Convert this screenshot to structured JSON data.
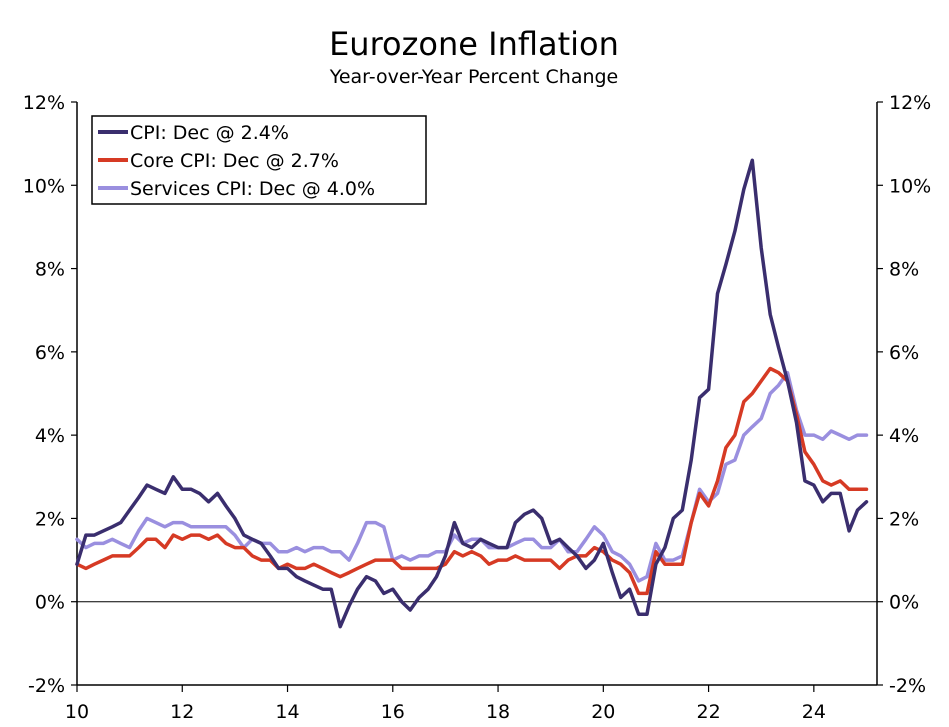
{
  "chart_data": {
    "type": "line",
    "title": "Eurozone Inflation",
    "subtitle": "Year-over-Year Percent Change",
    "xlabel": "",
    "ylabel": "",
    "x_ticks": [
      2010,
      2012,
      2014,
      2016,
      2018,
      2020,
      2022,
      2024
    ],
    "x_tick_labels": [
      "10",
      "12",
      "14",
      "16",
      "18",
      "20",
      "22",
      "24"
    ],
    "xlim": [
      2010,
      2025.2
    ],
    "ylim": [
      -2,
      12
    ],
    "y_ticks": [
      -2,
      0,
      2,
      4,
      6,
      8,
      10,
      12
    ],
    "y_tick_labels": [
      "-2%",
      "0%",
      "2%",
      "4%",
      "6%",
      "8%",
      "10%",
      "12%"
    ],
    "grid": false,
    "zero_line": true,
    "legend_position": "top-left",
    "series": [
      {
        "name": "CPI: Dec @ 2.4%",
        "color": "#3a2e6e",
        "points": [
          [
            2010.0,
            0.9
          ],
          [
            2010.17,
            1.6
          ],
          [
            2010.33,
            1.6
          ],
          [
            2010.5,
            1.7
          ],
          [
            2010.67,
            1.8
          ],
          [
            2010.83,
            1.9
          ],
          [
            2011.0,
            2.2
          ],
          [
            2011.17,
            2.5
          ],
          [
            2011.33,
            2.8
          ],
          [
            2011.5,
            2.7
          ],
          [
            2011.67,
            2.6
          ],
          [
            2011.83,
            3.0
          ],
          [
            2012.0,
            2.7
          ],
          [
            2012.17,
            2.7
          ],
          [
            2012.33,
            2.6
          ],
          [
            2012.5,
            2.4
          ],
          [
            2012.67,
            2.6
          ],
          [
            2012.83,
            2.3
          ],
          [
            2013.0,
            2.0
          ],
          [
            2013.17,
            1.6
          ],
          [
            2013.33,
            1.5
          ],
          [
            2013.5,
            1.4
          ],
          [
            2013.67,
            1.1
          ],
          [
            2013.83,
            0.8
          ],
          [
            2014.0,
            0.8
          ],
          [
            2014.17,
            0.6
          ],
          [
            2014.33,
            0.5
          ],
          [
            2014.5,
            0.4
          ],
          [
            2014.67,
            0.3
          ],
          [
            2014.83,
            0.3
          ],
          [
            2015.0,
            -0.6
          ],
          [
            2015.17,
            -0.1
          ],
          [
            2015.33,
            0.3
          ],
          [
            2015.5,
            0.6
          ],
          [
            2015.67,
            0.5
          ],
          [
            2015.83,
            0.2
          ],
          [
            2016.0,
            0.3
          ],
          [
            2016.17,
            0.0
          ],
          [
            2016.33,
            -0.2
          ],
          [
            2016.5,
            0.1
          ],
          [
            2016.67,
            0.3
          ],
          [
            2016.83,
            0.6
          ],
          [
            2017.0,
            1.1
          ],
          [
            2017.17,
            1.9
          ],
          [
            2017.33,
            1.4
          ],
          [
            2017.5,
            1.3
          ],
          [
            2017.67,
            1.5
          ],
          [
            2017.83,
            1.4
          ],
          [
            2018.0,
            1.3
          ],
          [
            2018.17,
            1.3
          ],
          [
            2018.33,
            1.9
          ],
          [
            2018.5,
            2.1
          ],
          [
            2018.67,
            2.2
          ],
          [
            2018.83,
            2.0
          ],
          [
            2019.0,
            1.4
          ],
          [
            2019.17,
            1.5
          ],
          [
            2019.33,
            1.3
          ],
          [
            2019.5,
            1.1
          ],
          [
            2019.67,
            0.8
          ],
          [
            2019.83,
            1.0
          ],
          [
            2020.0,
            1.4
          ],
          [
            2020.17,
            0.7
          ],
          [
            2020.33,
            0.1
          ],
          [
            2020.5,
            0.3
          ],
          [
            2020.67,
            -0.3
          ],
          [
            2020.83,
            -0.3
          ],
          [
            2021.0,
            0.9
          ],
          [
            2021.17,
            1.3
          ],
          [
            2021.33,
            2.0
          ],
          [
            2021.5,
            2.2
          ],
          [
            2021.67,
            3.4
          ],
          [
            2021.83,
            4.9
          ],
          [
            2022.0,
            5.1
          ],
          [
            2022.17,
            7.4
          ],
          [
            2022.33,
            8.1
          ],
          [
            2022.5,
            8.9
          ],
          [
            2022.67,
            9.9
          ],
          [
            2022.83,
            10.6
          ],
          [
            2023.0,
            8.5
          ],
          [
            2023.17,
            6.9
          ],
          [
            2023.33,
            6.1
          ],
          [
            2023.5,
            5.3
          ],
          [
            2023.67,
            4.3
          ],
          [
            2023.83,
            2.9
          ],
          [
            2024.0,
            2.8
          ],
          [
            2024.17,
            2.4
          ],
          [
            2024.33,
            2.6
          ],
          [
            2024.5,
            2.6
          ],
          [
            2024.67,
            1.7
          ],
          [
            2024.83,
            2.2
          ],
          [
            2025.0,
            2.4
          ]
        ]
      },
      {
        "name": "Core CPI: Dec @ 2.7%",
        "color": "#d63a24",
        "points": [
          [
            2010.0,
            0.9
          ],
          [
            2010.17,
            0.8
          ],
          [
            2010.33,
            0.9
          ],
          [
            2010.5,
            1.0
          ],
          [
            2010.67,
            1.1
          ],
          [
            2010.83,
            1.1
          ],
          [
            2011.0,
            1.1
          ],
          [
            2011.17,
            1.3
          ],
          [
            2011.33,
            1.5
          ],
          [
            2011.5,
            1.5
          ],
          [
            2011.67,
            1.3
          ],
          [
            2011.83,
            1.6
          ],
          [
            2012.0,
            1.5
          ],
          [
            2012.17,
            1.6
          ],
          [
            2012.33,
            1.6
          ],
          [
            2012.5,
            1.5
          ],
          [
            2012.67,
            1.6
          ],
          [
            2012.83,
            1.4
          ],
          [
            2013.0,
            1.3
          ],
          [
            2013.17,
            1.3
          ],
          [
            2013.33,
            1.1
          ],
          [
            2013.5,
            1.0
          ],
          [
            2013.67,
            1.0
          ],
          [
            2013.83,
            0.8
          ],
          [
            2014.0,
            0.9
          ],
          [
            2014.17,
            0.8
          ],
          [
            2014.33,
            0.8
          ],
          [
            2014.5,
            0.9
          ],
          [
            2014.67,
            0.8
          ],
          [
            2014.83,
            0.7
          ],
          [
            2015.0,
            0.6
          ],
          [
            2015.17,
            0.7
          ],
          [
            2015.33,
            0.8
          ],
          [
            2015.5,
            0.9
          ],
          [
            2015.67,
            1.0
          ],
          [
            2015.83,
            1.0
          ],
          [
            2016.0,
            1.0
          ],
          [
            2016.17,
            0.8
          ],
          [
            2016.33,
            0.8
          ],
          [
            2016.5,
            0.8
          ],
          [
            2016.67,
            0.8
          ],
          [
            2016.83,
            0.8
          ],
          [
            2017.0,
            0.9
          ],
          [
            2017.17,
            1.2
          ],
          [
            2017.33,
            1.1
          ],
          [
            2017.5,
            1.2
          ],
          [
            2017.67,
            1.1
          ],
          [
            2017.83,
            0.9
          ],
          [
            2018.0,
            1.0
          ],
          [
            2018.17,
            1.0
          ],
          [
            2018.33,
            1.1
          ],
          [
            2018.5,
            1.0
          ],
          [
            2018.67,
            1.0
          ],
          [
            2018.83,
            1.0
          ],
          [
            2019.0,
            1.0
          ],
          [
            2019.17,
            0.8
          ],
          [
            2019.33,
            1.0
          ],
          [
            2019.5,
            1.1
          ],
          [
            2019.67,
            1.1
          ],
          [
            2019.83,
            1.3
          ],
          [
            2020.0,
            1.2
          ],
          [
            2020.17,
            1.0
          ],
          [
            2020.33,
            0.9
          ],
          [
            2020.5,
            0.7
          ],
          [
            2020.67,
            0.2
          ],
          [
            2020.83,
            0.2
          ],
          [
            2021.0,
            1.2
          ],
          [
            2021.17,
            0.9
          ],
          [
            2021.33,
            0.9
          ],
          [
            2021.5,
            0.9
          ],
          [
            2021.67,
            1.9
          ],
          [
            2021.83,
            2.6
          ],
          [
            2022.0,
            2.3
          ],
          [
            2022.17,
            2.9
          ],
          [
            2022.33,
            3.7
          ],
          [
            2022.5,
            4.0
          ],
          [
            2022.67,
            4.8
          ],
          [
            2022.83,
            5.0
          ],
          [
            2023.0,
            5.3
          ],
          [
            2023.17,
            5.6
          ],
          [
            2023.33,
            5.5
          ],
          [
            2023.5,
            5.3
          ],
          [
            2023.67,
            4.5
          ],
          [
            2023.83,
            3.6
          ],
          [
            2024.0,
            3.3
          ],
          [
            2024.17,
            2.9
          ],
          [
            2024.33,
            2.8
          ],
          [
            2024.5,
            2.9
          ],
          [
            2024.67,
            2.7
          ],
          [
            2024.83,
            2.7
          ],
          [
            2025.0,
            2.7
          ]
        ]
      },
      {
        "name": "Services CPI: Dec @ 4.0%",
        "color": "#9a8fdf",
        "points": [
          [
            2010.0,
            1.5
          ],
          [
            2010.17,
            1.3
          ],
          [
            2010.33,
            1.4
          ],
          [
            2010.5,
            1.4
          ],
          [
            2010.67,
            1.5
          ],
          [
            2010.83,
            1.4
          ],
          [
            2011.0,
            1.3
          ],
          [
            2011.17,
            1.7
          ],
          [
            2011.33,
            2.0
          ],
          [
            2011.5,
            1.9
          ],
          [
            2011.67,
            1.8
          ],
          [
            2011.83,
            1.9
          ],
          [
            2012.0,
            1.9
          ],
          [
            2012.17,
            1.8
          ],
          [
            2012.33,
            1.8
          ],
          [
            2012.5,
            1.8
          ],
          [
            2012.67,
            1.8
          ],
          [
            2012.83,
            1.8
          ],
          [
            2013.0,
            1.6
          ],
          [
            2013.17,
            1.3
          ],
          [
            2013.33,
            1.5
          ],
          [
            2013.5,
            1.4
          ],
          [
            2013.67,
            1.4
          ],
          [
            2013.83,
            1.2
          ],
          [
            2014.0,
            1.2
          ],
          [
            2014.17,
            1.3
          ],
          [
            2014.33,
            1.2
          ],
          [
            2014.5,
            1.3
          ],
          [
            2014.67,
            1.3
          ],
          [
            2014.83,
            1.2
          ],
          [
            2015.0,
            1.2
          ],
          [
            2015.17,
            1.0
          ],
          [
            2015.33,
            1.4
          ],
          [
            2015.5,
            1.9
          ],
          [
            2015.67,
            1.9
          ],
          [
            2015.83,
            1.8
          ],
          [
            2016.0,
            1.0
          ],
          [
            2016.17,
            1.1
          ],
          [
            2016.33,
            1.0
          ],
          [
            2016.5,
            1.1
          ],
          [
            2016.67,
            1.1
          ],
          [
            2016.83,
            1.2
          ],
          [
            2017.0,
            1.2
          ],
          [
            2017.17,
            1.6
          ],
          [
            2017.33,
            1.4
          ],
          [
            2017.5,
            1.5
          ],
          [
            2017.67,
            1.5
          ],
          [
            2017.83,
            1.3
          ],
          [
            2018.0,
            1.3
          ],
          [
            2018.17,
            1.3
          ],
          [
            2018.33,
            1.4
          ],
          [
            2018.5,
            1.5
          ],
          [
            2018.67,
            1.5
          ],
          [
            2018.83,
            1.3
          ],
          [
            2019.0,
            1.3
          ],
          [
            2019.17,
            1.5
          ],
          [
            2019.33,
            1.2
          ],
          [
            2019.5,
            1.2
          ],
          [
            2019.67,
            1.5
          ],
          [
            2019.83,
            1.8
          ],
          [
            2020.0,
            1.6
          ],
          [
            2020.17,
            1.2
          ],
          [
            2020.33,
            1.1
          ],
          [
            2020.5,
            0.9
          ],
          [
            2020.67,
            0.5
          ],
          [
            2020.83,
            0.6
          ],
          [
            2021.0,
            1.4
          ],
          [
            2021.17,
            1.0
          ],
          [
            2021.33,
            1.0
          ],
          [
            2021.5,
            1.1
          ],
          [
            2021.67,
            1.9
          ],
          [
            2021.83,
            2.7
          ],
          [
            2022.0,
            2.4
          ],
          [
            2022.17,
            2.6
          ],
          [
            2022.33,
            3.3
          ],
          [
            2022.5,
            3.4
          ],
          [
            2022.67,
            4.0
          ],
          [
            2022.83,
            4.2
          ],
          [
            2023.0,
            4.4
          ],
          [
            2023.17,
            5.0
          ],
          [
            2023.33,
            5.2
          ],
          [
            2023.5,
            5.5
          ],
          [
            2023.67,
            4.6
          ],
          [
            2023.83,
            4.0
          ],
          [
            2024.0,
            4.0
          ],
          [
            2024.17,
            3.9
          ],
          [
            2024.33,
            4.1
          ],
          [
            2024.5,
            4.0
          ],
          [
            2024.67,
            3.9
          ],
          [
            2024.83,
            4.0
          ],
          [
            2025.0,
            4.0
          ]
        ]
      }
    ]
  }
}
